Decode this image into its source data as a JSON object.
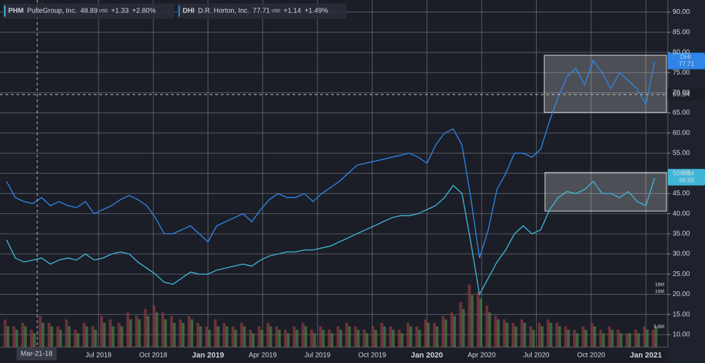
{
  "chart_data": {
    "type": "line",
    "x": [
      2018.08,
      2018.12,
      2018.16,
      2018.2,
      2018.24,
      2018.28,
      2018.32,
      2018.36,
      2018.4,
      2018.44,
      2018.48,
      2018.52,
      2018.56,
      2018.6,
      2018.64,
      2018.68,
      2018.72,
      2018.76,
      2018.8,
      2018.84,
      2018.88,
      2018.92,
      2018.96,
      2019,
      2019.04,
      2019.08,
      2019.12,
      2019.16,
      2019.2,
      2019.24,
      2019.28,
      2019.32,
      2019.36,
      2019.4,
      2019.44,
      2019.48,
      2019.52,
      2019.56,
      2019.6,
      2019.64,
      2019.68,
      2019.72,
      2019.76,
      2019.8,
      2019.84,
      2019.88,
      2019.92,
      2019.96,
      2020,
      2020.04,
      2020.08,
      2020.12,
      2020.16,
      2020.2,
      2020.24,
      2020.28,
      2020.32,
      2020.36,
      2020.4,
      2020.44,
      2020.48,
      2020.52,
      2020.56,
      2020.6,
      2020.64,
      2020.68,
      2020.72,
      2020.76,
      2020.8,
      2020.84,
      2020.88,
      2020.92,
      2020.96,
      2021,
      2021.04
    ],
    "xlim": [
      2018.05,
      2021.1
    ],
    "xticks": [
      {
        "value": 2018.5,
        "label": "Jul 2018"
      },
      {
        "value": 2018.75,
        "label": "Oct 2018"
      },
      {
        "value": 2019,
        "label": "Jan 2019"
      },
      {
        "value": 2019.25,
        "label": "Apr 2019"
      },
      {
        "value": 2019.5,
        "label": "Jul 2019"
      },
      {
        "value": 2019.75,
        "label": "Oct 2019"
      },
      {
        "value": 2020,
        "label": "Jan 2020"
      },
      {
        "value": 2020.25,
        "label": "Apr 2020"
      },
      {
        "value": 2020.5,
        "label": "Jul 2020"
      },
      {
        "value": 2020.75,
        "label": "Oct 2020"
      },
      {
        "value": 2021,
        "label": "Jan 2021"
      }
    ],
    "ylim": [
      6.9,
      93
    ],
    "yticks": [
      {
        "value": 10,
        "label": "10.00"
      },
      {
        "value": 15,
        "label": "15.00"
      },
      {
        "value": 20,
        "label": "20.00"
      },
      {
        "value": 25,
        "label": "25.00"
      },
      {
        "value": 30,
        "label": "30.00"
      },
      {
        "value": 35,
        "label": "35.00"
      },
      {
        "value": 40,
        "label": "40.00"
      },
      {
        "value": 45,
        "label": "45.00"
      },
      {
        "value": 50,
        "label": "50.00"
      },
      {
        "value": 55,
        "label": "55.00"
      },
      {
        "value": 60,
        "label": "60.00"
      },
      {
        "value": 65,
        "label": "65.00"
      },
      {
        "value": 70,
        "label": "70.00"
      },
      {
        "value": 75,
        "label": "75.00"
      },
      {
        "value": 80,
        "label": "80.00"
      },
      {
        "value": 85,
        "label": "85.00"
      },
      {
        "value": 90,
        "label": "90.00"
      }
    ],
    "y2lim": [
      0,
      100
    ],
    "y2ticks": [
      {
        "value": 18,
        "label": "18M"
      },
      {
        "value": 16,
        "label": "16M"
      },
      {
        "value": 5.8,
        "label": "5.8M"
      }
    ],
    "grid": true,
    "reference_line": 69.54,
    "crosshair_label": "Mar-21-18",
    "series": [
      {
        "name": "PHM",
        "description": "PulteGroup, Inc.",
        "currency": "USD",
        "change": "+1.33",
        "change_pct": "+2.80%",
        "color": "#3fb6d6",
        "values": [
          33.5,
          29,
          28,
          28.5,
          29,
          27.5,
          28.5,
          29,
          28.5,
          30,
          28.5,
          29,
          30,
          30.5,
          30,
          28,
          26.5,
          25,
          23,
          22.5,
          24,
          25.5,
          25,
          25,
          26,
          26.5,
          27,
          27.5,
          27,
          28.5,
          29.5,
          30,
          30.5,
          30.5,
          31,
          31,
          31.5,
          32,
          33,
          34,
          35,
          36,
          37,
          38,
          39,
          39.5,
          39.5,
          40,
          41,
          42,
          44,
          47,
          45,
          33,
          20,
          24,
          28,
          31,
          35,
          37,
          35,
          36,
          41,
          44,
          45.5,
          45,
          46,
          48,
          45,
          45,
          44,
          45.5,
          43,
          42,
          48.89
        ]
      },
      {
        "name": "DHI",
        "description": "D.R. Horton, Inc.",
        "currency": "USD",
        "change": "+1.14",
        "change_pct": "+1.49%",
        "color": "#2f86e8",
        "values": [
          48,
          44,
          43,
          42.5,
          44,
          42,
          43,
          42,
          41.5,
          43,
          40,
          41,
          42,
          43.5,
          44.5,
          43.5,
          42,
          39,
          35,
          35,
          36,
          37,
          35,
          33,
          37,
          38,
          39,
          40,
          38,
          41,
          43.5,
          45,
          44,
          44,
          45,
          43,
          45,
          46.5,
          48,
          50,
          52,
          52.5,
          53,
          53.5,
          54,
          54.5,
          55,
          54,
          52.5,
          57,
          60,
          61,
          57,
          44,
          29,
          36,
          46,
          50,
          55,
          55,
          54,
          56,
          63,
          69,
          74,
          76,
          72,
          78,
          75,
          71,
          75,
          73,
          71,
          67,
          77.71
        ]
      },
      {
        "type": "bar",
        "axis": "y2",
        "color": "#8b3a42",
        "values": [
          8,
          6,
          7,
          5,
          9,
          7,
          6,
          8,
          5,
          7,
          6,
          9,
          8,
          7,
          10,
          9,
          11,
          12,
          10,
          9,
          8,
          9,
          7,
          6,
          8,
          7,
          6,
          7,
          5,
          6,
          7,
          6,
          5,
          6,
          7,
          5,
          6,
          5,
          6,
          7,
          6,
          5,
          6,
          7,
          6,
          5,
          7,
          6,
          8,
          7,
          9,
          10,
          13,
          18,
          16,
          12,
          9,
          8,
          7,
          8,
          6,
          7,
          8,
          7,
          6,
          5,
          6,
          7,
          5,
          6,
          5,
          4,
          5,
          6,
          5
        ]
      },
      {
        "type": "bar",
        "axis": "y2",
        "color": "#4f7a45",
        "values": [
          6,
          5,
          6,
          4,
          7,
          6,
          5,
          6,
          4,
          6,
          5,
          7,
          6,
          6,
          8,
          8,
          9,
          10,
          8,
          7,
          7,
          8,
          6,
          5,
          6,
          6,
          5,
          6,
          4,
          5,
          6,
          5,
          4,
          5,
          6,
          4,
          5,
          4,
          5,
          6,
          5,
          4,
          5,
          6,
          5,
          4,
          6,
          5,
          7,
          6,
          8,
          9,
          11,
          15,
          14,
          10,
          8,
          7,
          6,
          7,
          5,
          6,
          7,
          6,
          5,
          4,
          5,
          6,
          4,
          5,
          4,
          4,
          4,
          5,
          6
        ]
      }
    ]
  }
}
